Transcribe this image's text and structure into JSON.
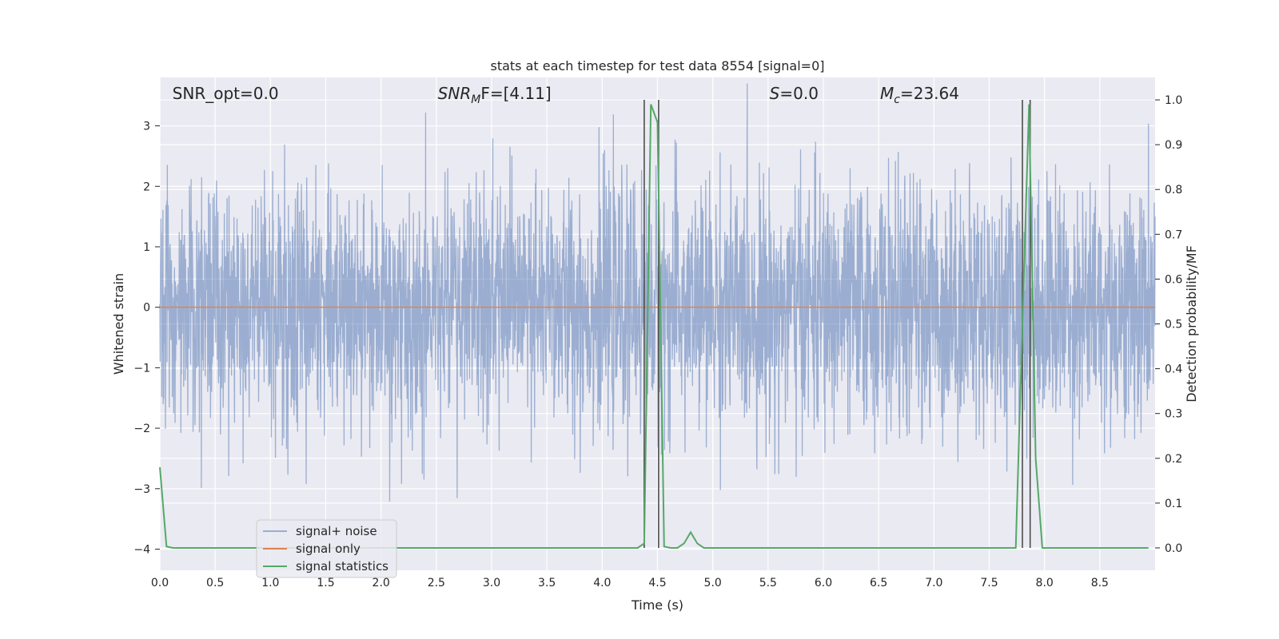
{
  "chart_data": {
    "type": "line",
    "title": "stats at each timestep for test data 8554 [signal=0]",
    "xlabel": "Time (s)",
    "ylabel_left": "Whitened strain",
    "ylabel_right": "Detection probability/MF",
    "xlim": [
      0.0,
      9.0
    ],
    "ylim_left": [
      -4.35,
      3.8
    ],
    "ylim_right": [
      -0.05,
      1.05
    ],
    "x_ticks": [
      "0.0",
      "0.5",
      "1.0",
      "1.5",
      "2.0",
      "2.5",
      "3.0",
      "3.5",
      "4.0",
      "4.5",
      "5.0",
      "5.5",
      "6.0",
      "6.5",
      "7.0",
      "7.5",
      "8.0",
      "8.5"
    ],
    "y_left_ticks": [
      "3",
      "2",
      "1",
      "0",
      "−1",
      "−2",
      "−3",
      "−4"
    ],
    "y_right_ticks": [
      "1.0",
      "0.9",
      "0.8",
      "0.7",
      "0.6",
      "0.5",
      "0.4",
      "0.3",
      "0.2",
      "0.1",
      "0.0"
    ],
    "grid": true,
    "legend_position": "lower-left",
    "annotations": [
      {
        "text": "SNR_opt=0.0",
        "x": 0.2,
        "y_right": 1.0
      },
      {
        "text_main": "SNR",
        "text_sub": "M",
        "text_rest": "F=[4.11]",
        "x": 2.6,
        "y_right": 1.0
      },
      {
        "text_main": "S",
        "text_rest": "=0.0",
        "x": 5.6,
        "y_right": 1.0
      },
      {
        "text_main": "M",
        "text_sub": "c",
        "text_rest": "=23.64",
        "x": 6.6,
        "y_right": 1.0
      }
    ],
    "series": [
      {
        "name": "signal+ noise",
        "color": "#4c72b0",
        "opacity": 0.5,
        "description": "whitened noise, roughly Gaussian with unit std",
        "x_range": [
          0.0,
          9.0
        ],
        "std": 1.0,
        "max_abs": 3.7
      },
      {
        "name": "signal only",
        "color": "#dd8452",
        "x": [
          0.0,
          9.0
        ],
        "y": [
          0.0,
          0.0
        ]
      },
      {
        "name": "signal statistics",
        "color": "#55a868",
        "axis": "right",
        "x": [
          0.0,
          0.06,
          0.12,
          4.32,
          4.38,
          4.44,
          4.5,
          4.56,
          4.62,
          4.68,
          4.74,
          4.8,
          4.86,
          4.92,
          7.74,
          7.8,
          7.86,
          7.92,
          7.98,
          8.94
        ],
        "y": [
          0.18,
          0.003,
          0.0,
          0.0,
          0.01,
          0.99,
          0.95,
          0.003,
          0.0,
          0.0,
          0.01,
          0.035,
          0.01,
          0.0,
          0.0,
          0.5,
          0.99,
          0.2,
          0.0,
          0.0
        ]
      }
    ],
    "vertical_lines": {
      "color": "#4d4d4d",
      "x": [
        4.38,
        4.51,
        7.8,
        7.87
      ],
      "y_right_range": [
        0.0,
        1.0
      ]
    }
  }
}
